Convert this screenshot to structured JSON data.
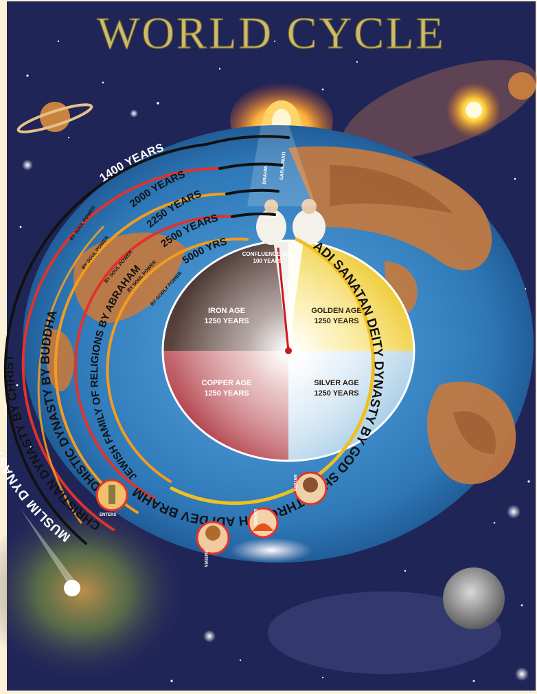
{
  "title": "WORLD CYCLE",
  "colors": {
    "page_bg": "#fdf1d8",
    "space": "#1b2050",
    "ocean": "#2e78b8",
    "gold": "#f0c020",
    "title_gold": "#cdbb6a",
    "band_red": "#e2322a",
    "band_orange": "#f39c1f",
    "band_black": "#111111"
  },
  "ages": {
    "golden": {
      "name": "GOLDEN AGE",
      "years": "1250 YEARS"
    },
    "silver": {
      "name": "SILVER AGE",
      "years": "1250 YEARS"
    },
    "copper": {
      "name": "COPPER AGE",
      "years": "1250 YEARS"
    },
    "iron": {
      "name": "IRON AGE",
      "years": "1250 YEARS"
    },
    "confluence": {
      "name": "CONFLUENCE AGE",
      "years": "100 YEARS"
    }
  },
  "durations": [
    "1400 YEARS",
    "2000 YEARS",
    "2250 YEARS",
    "2500 YEARS",
    "5000 YRS"
  ],
  "power_labels": {
    "soul": "BY SOUL POWER",
    "godly": "BY GODLY POWER"
  },
  "dynasties": {
    "muslim": "MUSLIM DYNASTY BY MOHAMMED",
    "christian": "CHRISTIAN DYNASTY BY CHRIST",
    "buddhist": "BUDDHISTIC DYNASTY BY BUDDHA",
    "jewish": "JEWISH FAMILY OF RELIGIONS BY ABRAHAM",
    "adi": "ADI DEV BRAHMA (ADAM)",
    "deity": "ADI SANATAN DEITY DYNASTY BY GOD SHIVA THROUGH ADI DEV BRAHMA (ADAM)",
    "entering": "ENTERS"
  },
  "top_labels": {
    "left": "BRAHMA",
    "right": "SARASWATI"
  }
}
